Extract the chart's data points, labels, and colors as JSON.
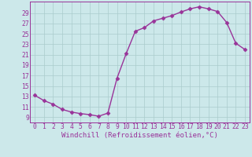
{
  "x": [
    0,
    1,
    2,
    3,
    4,
    5,
    6,
    7,
    8,
    9,
    10,
    11,
    12,
    13,
    14,
    15,
    16,
    17,
    18,
    19,
    20,
    21,
    22,
    23
  ],
  "y": [
    13.2,
    12.2,
    11.5,
    10.5,
    10.0,
    9.7,
    9.5,
    9.2,
    9.8,
    16.5,
    21.2,
    25.5,
    26.2,
    27.5,
    28.0,
    28.5,
    29.2,
    29.8,
    30.2,
    29.8,
    29.3,
    27.2,
    23.2,
    22.0
  ],
  "line_color": "#993399",
  "marker": "D",
  "markersize": 2.5,
  "linewidth": 1.0,
  "xlabel": "Windchill (Refroidissement éolien,°C)",
  "xlabel_fontsize": 6.5,
  "ytick_labels": [
    "9",
    "11",
    "13",
    "15",
    "17",
    "19",
    "21",
    "23",
    "25",
    "27",
    "29"
  ],
  "ytick_vals": [
    9,
    11,
    13,
    15,
    17,
    19,
    21,
    23,
    25,
    27,
    29
  ],
  "ylim": [
    8.0,
    31.2
  ],
  "xlim": [
    -0.5,
    23.5
  ],
  "bg_color": "#cce8ea",
  "grid_color": "#aacccc",
  "tick_fontsize": 5.8,
  "spine_color": "#993399"
}
